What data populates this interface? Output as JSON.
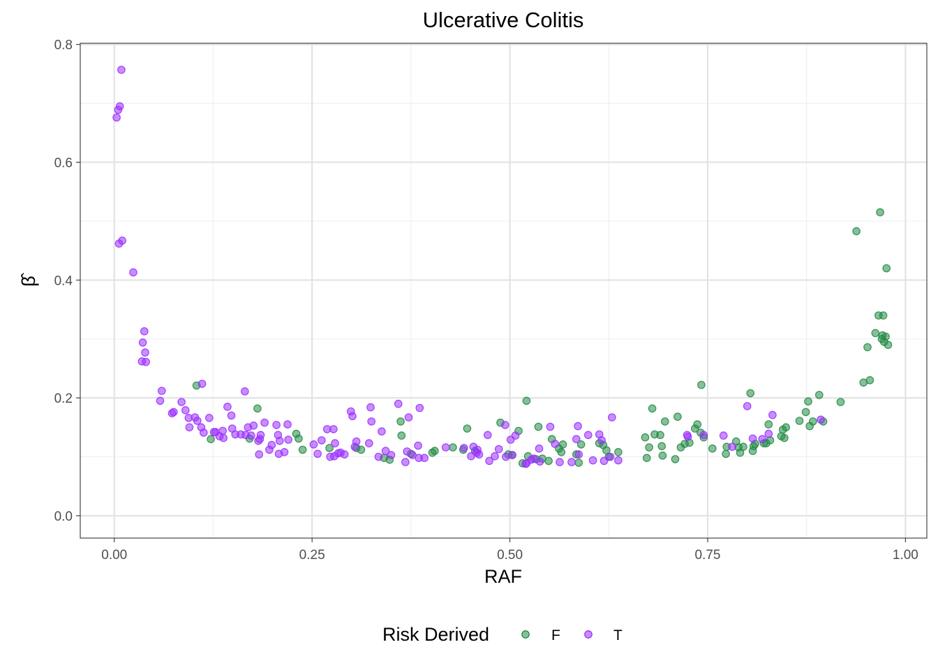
{
  "chart_data": {
    "type": "scatter",
    "title": "Ulcerative Colitis",
    "xlabel": "RAF",
    "ylabel": "β̂",
    "xlim": [
      -0.043,
      1.027
    ],
    "ylim": [
      -0.038,
      0.802
    ],
    "x_ticks": [
      0.0,
      0.25,
      0.5,
      0.75,
      1.0
    ],
    "x_tick_labels": [
      "0.00",
      "0.25",
      "0.50",
      "0.75",
      "1.00"
    ],
    "y_ticks": [
      0.0,
      0.2,
      0.4,
      0.6,
      0.8
    ],
    "y_tick_labels": [
      "0.0",
      "0.2",
      "0.4",
      "0.6",
      "0.8"
    ],
    "grid": true,
    "legend": {
      "title": "Risk Derived",
      "position": "bottom"
    },
    "series": [
      {
        "name": "F",
        "color": "#238b45",
        "points": [
          [
            0.104,
            0.221
          ],
          [
            0.122,
            0.13
          ],
          [
            0.181,
            0.182
          ],
          [
            0.171,
            0.131
          ],
          [
            0.23,
            0.139
          ],
          [
            0.233,
            0.131
          ],
          [
            0.238,
            0.112
          ],
          [
            0.272,
            0.115
          ],
          [
            0.306,
            0.115
          ],
          [
            0.312,
            0.112
          ],
          [
            0.341,
            0.098
          ],
          [
            0.348,
            0.095
          ],
          [
            0.362,
            0.16
          ],
          [
            0.363,
            0.136
          ],
          [
            0.375,
            0.105
          ],
          [
            0.402,
            0.107
          ],
          [
            0.405,
            0.11
          ],
          [
            0.428,
            0.116
          ],
          [
            0.441,
            0.112
          ],
          [
            0.446,
            0.148
          ],
          [
            0.456,
            0.11
          ],
          [
            0.488,
            0.158
          ],
          [
            0.498,
            0.104
          ],
          [
            0.503,
            0.103
          ],
          [
            0.511,
            0.144
          ],
          [
            0.516,
            0.089
          ],
          [
            0.521,
            0.195
          ],
          [
            0.523,
            0.101
          ],
          [
            0.533,
            0.096
          ],
          [
            0.536,
            0.151
          ],
          [
            0.541,
            0.097
          ],
          [
            0.549,
            0.093
          ],
          [
            0.553,
            0.13
          ],
          [
            0.562,
            0.114
          ],
          [
            0.565,
            0.108
          ],
          [
            0.567,
            0.121
          ],
          [
            0.584,
            0.104
          ],
          [
            0.587,
            0.09
          ],
          [
            0.59,
            0.121
          ],
          [
            0.613,
            0.123
          ],
          [
            0.618,
            0.12
          ],
          [
            0.622,
            0.111
          ],
          [
            0.625,
            0.1
          ],
          [
            0.637,
            0.108
          ],
          [
            0.671,
            0.133
          ],
          [
            0.673,
            0.098
          ],
          [
            0.676,
            0.116
          ],
          [
            0.68,
            0.182
          ],
          [
            0.683,
            0.138
          ],
          [
            0.69,
            0.137
          ],
          [
            0.692,
            0.118
          ],
          [
            0.693,
            0.102
          ],
          [
            0.696,
            0.16
          ],
          [
            0.709,
            0.096
          ],
          [
            0.712,
            0.168
          ],
          [
            0.716,
            0.116
          ],
          [
            0.721,
            0.122
          ],
          [
            0.727,
            0.124
          ],
          [
            0.734,
            0.148
          ],
          [
            0.737,
            0.155
          ],
          [
            0.741,
            0.141
          ],
          [
            0.742,
            0.222
          ],
          [
            0.745,
            0.133
          ],
          [
            0.756,
            0.114
          ],
          [
            0.773,
            0.105
          ],
          [
            0.774,
            0.117
          ],
          [
            0.786,
            0.126
          ],
          [
            0.789,
            0.116
          ],
          [
            0.791,
            0.107
          ],
          [
            0.795,
            0.117
          ],
          [
            0.804,
            0.208
          ],
          [
            0.807,
            0.11
          ],
          [
            0.808,
            0.118
          ],
          [
            0.81,
            0.122
          ],
          [
            0.821,
            0.123
          ],
          [
            0.824,
            0.123
          ],
          [
            0.827,
            0.155
          ],
          [
            0.829,
            0.128
          ],
          [
            0.843,
            0.135
          ],
          [
            0.845,
            0.146
          ],
          [
            0.847,
            0.132
          ],
          [
            0.849,
            0.15
          ],
          [
            0.866,
            0.161
          ],
          [
            0.874,
            0.176
          ],
          [
            0.877,
            0.194
          ],
          [
            0.879,
            0.152
          ],
          [
            0.883,
            0.16
          ],
          [
            0.891,
            0.205
          ],
          [
            0.896,
            0.16
          ],
          [
            0.918,
            0.193
          ],
          [
            0.938,
            0.483
          ],
          [
            0.947,
            0.226
          ],
          [
            0.952,
            0.286
          ],
          [
            0.955,
            0.23
          ],
          [
            0.962,
            0.31
          ],
          [
            0.966,
            0.34
          ],
          [
            0.968,
            0.515
          ],
          [
            0.97,
            0.3
          ],
          [
            0.971,
            0.306
          ],
          [
            0.972,
            0.34
          ],
          [
            0.973,
            0.295
          ],
          [
            0.975,
            0.304
          ],
          [
            0.976,
            0.42
          ],
          [
            0.978,
            0.29
          ]
        ]
      },
      {
        "name": "T",
        "color": "#9b30ff",
        "points": [
          [
            0.003,
            0.676
          ],
          [
            0.005,
            0.689
          ],
          [
            0.006,
            0.462
          ],
          [
            0.007,
            0.695
          ],
          [
            0.009,
            0.757
          ],
          [
            0.01,
            0.467
          ],
          [
            0.024,
            0.413
          ],
          [
            0.035,
            0.262
          ],
          [
            0.036,
            0.294
          ],
          [
            0.038,
            0.313
          ],
          [
            0.039,
            0.277
          ],
          [
            0.04,
            0.261
          ],
          [
            0.058,
            0.195
          ],
          [
            0.06,
            0.212
          ],
          [
            0.073,
            0.174
          ],
          [
            0.075,
            0.176
          ],
          [
            0.085,
            0.193
          ],
          [
            0.09,
            0.179
          ],
          [
            0.094,
            0.166
          ],
          [
            0.095,
            0.15
          ],
          [
            0.102,
            0.167
          ],
          [
            0.105,
            0.161
          ],
          [
            0.11,
            0.15
          ],
          [
            0.111,
            0.224
          ],
          [
            0.113,
            0.141
          ],
          [
            0.12,
            0.166
          ],
          [
            0.126,
            0.142
          ],
          [
            0.128,
            0.142
          ],
          [
            0.133,
            0.135
          ],
          [
            0.137,
            0.144
          ],
          [
            0.138,
            0.132
          ],
          [
            0.143,
            0.185
          ],
          [
            0.148,
            0.17
          ],
          [
            0.149,
            0.148
          ],
          [
            0.153,
            0.138
          ],
          [
            0.16,
            0.138
          ],
          [
            0.165,
            0.211
          ],
          [
            0.166,
            0.137
          ],
          [
            0.169,
            0.15
          ],
          [
            0.173,
            0.136
          ],
          [
            0.176,
            0.153
          ],
          [
            0.182,
            0.127
          ],
          [
            0.183,
            0.104
          ],
          [
            0.184,
            0.13
          ],
          [
            0.185,
            0.137
          ],
          [
            0.19,
            0.158
          ],
          [
            0.196,
            0.112
          ],
          [
            0.199,
            0.12
          ],
          [
            0.205,
            0.154
          ],
          [
            0.207,
            0.137
          ],
          [
            0.208,
            0.105
          ],
          [
            0.209,
            0.127
          ],
          [
            0.215,
            0.108
          ],
          [
            0.219,
            0.155
          ],
          [
            0.22,
            0.129
          ],
          [
            0.252,
            0.121
          ],
          [
            0.257,
            0.105
          ],
          [
            0.262,
            0.128
          ],
          [
            0.269,
            0.147
          ],
          [
            0.273,
            0.1
          ],
          [
            0.277,
            0.147
          ],
          [
            0.278,
            0.101
          ],
          [
            0.279,
            0.123
          ],
          [
            0.283,
            0.106
          ],
          [
            0.286,
            0.107
          ],
          [
            0.291,
            0.104
          ],
          [
            0.299,
            0.177
          ],
          [
            0.301,
            0.169
          ],
          [
            0.304,
            0.117
          ],
          [
            0.306,
            0.126
          ],
          [
            0.322,
            0.123
          ],
          [
            0.324,
            0.184
          ],
          [
            0.325,
            0.16
          ],
          [
            0.334,
            0.1
          ],
          [
            0.338,
            0.143
          ],
          [
            0.343,
            0.11
          ],
          [
            0.35,
            0.103
          ],
          [
            0.359,
            0.19
          ],
          [
            0.368,
            0.091
          ],
          [
            0.37,
            0.109
          ],
          [
            0.372,
            0.167
          ],
          [
            0.377,
            0.103
          ],
          [
            0.384,
            0.119
          ],
          [
            0.385,
            0.098
          ],
          [
            0.386,
            0.183
          ],
          [
            0.392,
            0.098
          ],
          [
            0.419,
            0.116
          ],
          [
            0.442,
            0.115
          ],
          [
            0.451,
            0.101
          ],
          [
            0.454,
            0.117
          ],
          [
            0.458,
            0.107
          ],
          [
            0.459,
            0.112
          ],
          [
            0.461,
            0.104
          ],
          [
            0.472,
            0.137
          ],
          [
            0.474,
            0.093
          ],
          [
            0.481,
            0.101
          ],
          [
            0.486,
            0.113
          ],
          [
            0.494,
            0.154
          ],
          [
            0.495,
            0.1
          ],
          [
            0.501,
            0.129
          ],
          [
            0.503,
            0.103
          ],
          [
            0.507,
            0.136
          ],
          [
            0.52,
            0.088
          ],
          [
            0.521,
            0.089
          ],
          [
            0.527,
            0.095
          ],
          [
            0.53,
            0.097
          ],
          [
            0.537,
            0.114
          ],
          [
            0.538,
            0.092
          ],
          [
            0.551,
            0.151
          ],
          [
            0.557,
            0.122
          ],
          [
            0.563,
            0.091
          ],
          [
            0.578,
            0.091
          ],
          [
            0.584,
            0.13
          ],
          [
            0.586,
            0.152
          ],
          [
            0.587,
            0.104
          ],
          [
            0.599,
            0.137
          ],
          [
            0.605,
            0.094
          ],
          [
            0.613,
            0.138
          ],
          [
            0.616,
            0.128
          ],
          [
            0.619,
            0.093
          ],
          [
            0.627,
            0.1
          ],
          [
            0.629,
            0.167
          ],
          [
            0.637,
            0.094
          ],
          [
            0.745,
            0.137
          ],
          [
            0.724,
            0.137
          ],
          [
            0.725,
            0.134
          ],
          [
            0.77,
            0.136
          ],
          [
            0.781,
            0.117
          ],
          [
            0.8,
            0.186
          ],
          [
            0.807,
            0.131
          ],
          [
            0.819,
            0.13
          ],
          [
            0.827,
            0.139
          ],
          [
            0.832,
            0.171
          ],
          [
            0.893,
            0.163
          ]
        ]
      }
    ]
  }
}
